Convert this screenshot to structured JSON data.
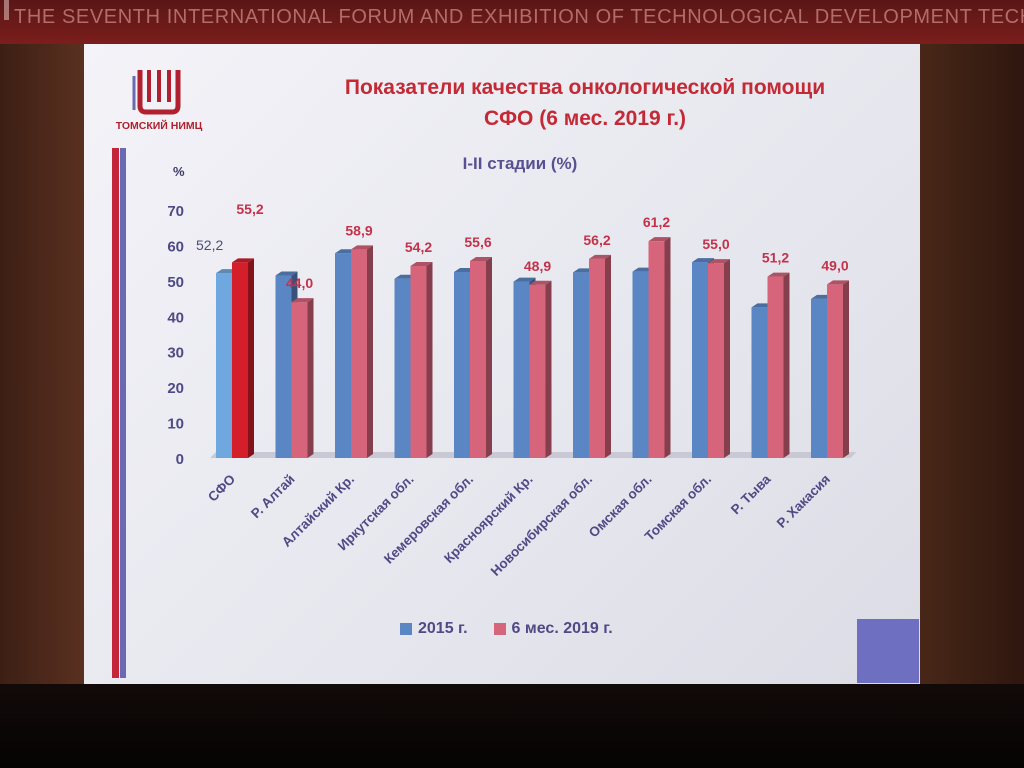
{
  "banner": {
    "text": "THE SEVENTH INTERNATIONAL FORUM AND EXHIBITION OF TECHNOLOGICAL DEVELOPMENT TECHNOPROM"
  },
  "logo": {
    "text": "ТОМСКИЙ НИМЦ"
  },
  "slide": {
    "title_line1": "Показатели качества онкологической помощи",
    "title_line2": "СФО (6 мес. 2019 г.)"
  },
  "colors": {
    "series_2015": "#5b86c4",
    "series_2019": "#d6647b",
    "highlight_2015": "#6fa8df",
    "highlight_2019": "#d41e2a",
    "title": "#c32a35",
    "text": "#4f4a86"
  },
  "chart_data": {
    "type": "bar",
    "title": "I-II стадии (%)",
    "ylabel": "%",
    "ylim": [
      0,
      70
    ],
    "yticks": [
      0,
      10,
      20,
      30,
      40,
      50,
      60,
      70
    ],
    "categories": [
      "СФО",
      "Р. Алтай",
      "Алтайский Кр.",
      "Иркутская обл.",
      "Кемеровская обл.",
      "Красноярский Кр.",
      "Новосибирская обл.",
      "Омская обл.",
      "Томская обл.",
      "Р. Тыва",
      "Р. Хакасия"
    ],
    "series": [
      {
        "name": "2015 г.",
        "values": [
          52.2,
          51.5,
          57.8,
          50.6,
          52.5,
          49.8,
          52.4,
          52.6,
          55.3,
          42.5,
          44.9
        ]
      },
      {
        "name": "6 мес. 2019 г.",
        "values": [
          55.2,
          44.0,
          58.9,
          54.2,
          55.6,
          48.9,
          56.2,
          61.2,
          55.0,
          51.2,
          49.0
        ]
      }
    ],
    "data_labels_2015": {
      "СФО": "52,2"
    },
    "data_labels_2019": [
      "55,2",
      "44,0",
      "58,9",
      "54,2",
      "55,6",
      "48,9",
      "56,2",
      "61,2",
      "55,0",
      "51,2",
      "49,0"
    ],
    "legend": [
      "2015 г.",
      "6 мес. 2019 г."
    ],
    "legend_position": "bottom",
    "grid": false
  }
}
